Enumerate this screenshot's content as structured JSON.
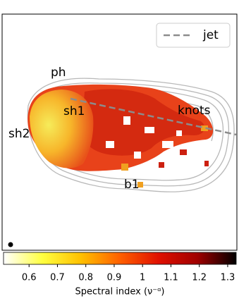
{
  "chart_data": {
    "type": "image",
    "annotations": [
      "ph",
      "sh1",
      "sh2",
      "knots",
      "b1"
    ],
    "legend": {
      "position": "upper right",
      "entries": [
        {
          "name": "jet",
          "color": "#8c8c8c",
          "style": "dashed"
        }
      ]
    },
    "colorbar": {
      "label": "Spectral index (ν⁻ᵅ)",
      "colormap": [
        "#ffffff",
        "#ffff40",
        "#ffc000",
        "#ff6000",
        "#e01000",
        "#a00000",
        "#000000"
      ],
      "xlim": [
        0.51,
        1.33
      ],
      "xticks": [
        0.6,
        0.7,
        0.8,
        0.9,
        1.0,
        1.1,
        1.2,
        1.3
      ]
    }
  }
}
